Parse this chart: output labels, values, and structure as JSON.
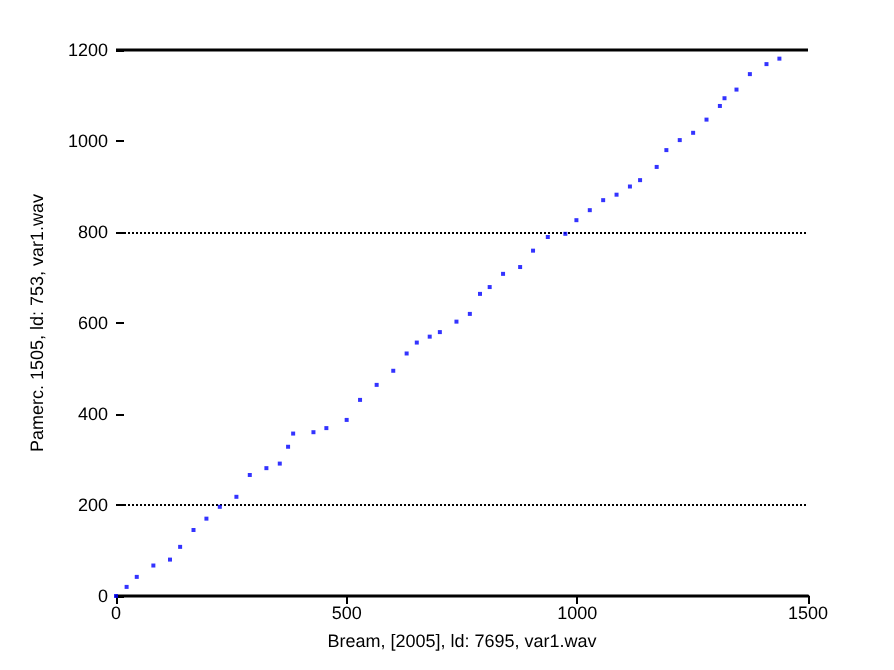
{
  "chart_data": {
    "type": "scatter",
    "xlabel": "Bream, [2005], ld: 7695, var1.wav",
    "ylabel": "Pamerc. 1505, ld: 753, var1.wav",
    "x": [
      0,
      23,
      45,
      81,
      117,
      139,
      168,
      196,
      225,
      261,
      290,
      326,
      355,
      373,
      384,
      428,
      456,
      500,
      529,
      565,
      601,
      630,
      652,
      680,
      702,
      738,
      767,
      789,
      810,
      839,
      876,
      904,
      936,
      974,
      998,
      1027,
      1056,
      1085,
      1114,
      1136,
      1172,
      1193,
      1222,
      1251,
      1280,
      1309,
      1319,
      1345,
      1374,
      1410,
      1438
    ],
    "series": [
      {
        "color": "#0000ff",
        "values": [
          0,
          20,
          42,
          67,
          80,
          108,
          145,
          170,
          196,
          218,
          266,
          281,
          291,
          328,
          357,
          360,
          369,
          387,
          431,
          464,
          495,
          533,
          557,
          570,
          580,
          603,
          620,
          664,
          679,
          708,
          723,
          759,
          789,
          796,
          826,
          848,
          870,
          882,
          900,
          914,
          943,
          980,
          1002,
          1018,
          1047,
          1077,
          1094,
          1113,
          1147,
          1169,
          1181
        ]
      }
    ],
    "marker": "square",
    "xlim": [
      0,
      1500
    ],
    "ylim": [
      0,
      1200
    ],
    "xticks": [
      0,
      500,
      1000,
      1500
    ],
    "yticks": [
      0,
      200,
      400,
      600,
      800,
      1000,
      1200
    ],
    "grid": false,
    "ref_lines": [
      {
        "axis": "y",
        "value": 200,
        "line_style": "dotted",
        "color": "#000000"
      },
      {
        "axis": "y",
        "value": 800,
        "line_style": "dotted",
        "color": "#000000"
      },
      {
        "axis": "y",
        "value": 1200,
        "line_style": "solid",
        "color": "#000000"
      }
    ]
  }
}
